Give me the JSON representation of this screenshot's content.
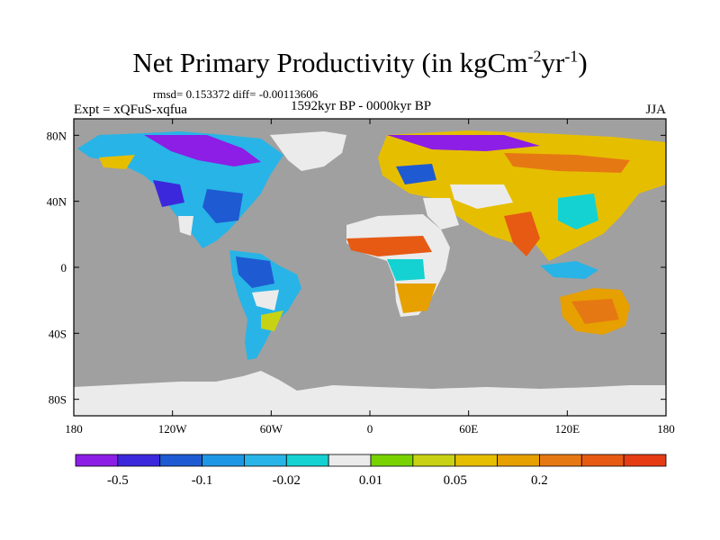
{
  "title": {
    "main": "Net Primary Productivity (in kgCm",
    "sup1": "-2",
    "mid": "yr",
    "sup2": "-1",
    "end": ")"
  },
  "stats": "rmsd= 0.153372 diff= -0.00113606",
  "left_label": "Expt = xQFuS-xqfua",
  "center_label": "1592kyr BP - 0000kyr BP",
  "right_label": "JJA",
  "chart_data": {
    "type": "heatmap",
    "title": "Net Primary Productivity (in kgCm-2yr-1)",
    "subtitle": "1592kyr BP - 0000kyr BP",
    "xlabel": "",
    "ylabel": "",
    "xlim": [
      -180,
      180
    ],
    "ylim": [
      -90,
      90
    ],
    "x_ticks": [
      {
        "value": -180,
        "label": "180"
      },
      {
        "value": -120,
        "label": "120W"
      },
      {
        "value": -60,
        "label": "60W"
      },
      {
        "value": 0,
        "label": "0"
      },
      {
        "value": 60,
        "label": "60E"
      },
      {
        "value": 120,
        "label": "120E"
      },
      {
        "value": 180,
        "label": "180"
      }
    ],
    "y_ticks": [
      {
        "value": 80,
        "label": "80N"
      },
      {
        "value": 40,
        "label": "40N"
      },
      {
        "value": 0,
        "label": "0"
      },
      {
        "value": -40,
        "label": "40S"
      },
      {
        "value": -80,
        "label": "80S"
      }
    ],
    "colorbar": {
      "colors": [
        "#8c1ee6",
        "#3c28dc",
        "#1e5ad2",
        "#1e96e6",
        "#28b4e6",
        "#14d2d2",
        "#ebebeb",
        "#78d200",
        "#c8d214",
        "#e6be00",
        "#e6a000",
        "#e67814",
        "#e65a14",
        "#e63c14"
      ],
      "labels": [
        "-0.5",
        "-0.1",
        "-0.02",
        "0.01",
        "0.05",
        "0.2"
      ],
      "label_after_box": [
        1,
        3,
        5,
        7,
        9,
        11
      ]
    },
    "regions": [
      {
        "name": "Greenland ice",
        "value": "no-data"
      },
      {
        "name": "Antarctic ice",
        "value": "no-data"
      },
      {
        "name": "Canadian Arctic",
        "value": -0.5
      },
      {
        "name": "Siberian coast",
        "value": -0.5
      },
      {
        "name": "Eastern USA",
        "value": -0.1
      },
      {
        "name": "Amazon",
        "value": -0.1
      },
      {
        "name": "Sahara",
        "value": "no-data"
      },
      {
        "name": "Sahel",
        "value": 0.2
      },
      {
        "name": "Central Asia",
        "value": 0.05
      },
      {
        "name": "India",
        "value": 0.2
      },
      {
        "name": "Australia",
        "value": 0.2
      },
      {
        "name": "Southern Africa",
        "value": 0.1
      }
    ]
  }
}
